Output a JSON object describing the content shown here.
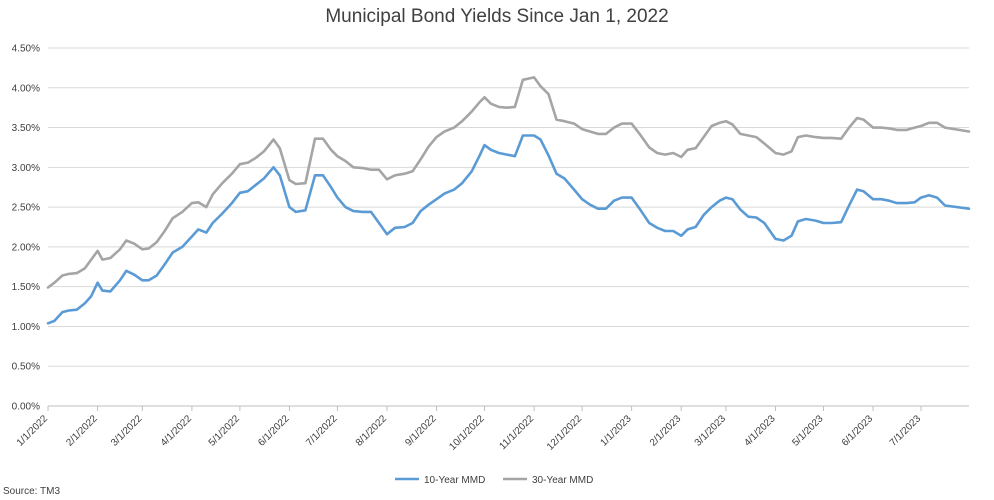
{
  "chart_data": {
    "type": "line",
    "title": "Municipal Bond Yields Since Jan 1, 2022",
    "source": "Source: TM3",
    "xlabel": "",
    "ylabel": "",
    "x_axis": {
      "start": "1/1/2022",
      "end": "7/31/2023",
      "tick_labels": [
        "1/1/2022",
        "2/1/2022",
        "3/1/2022",
        "4/1/2022",
        "5/1/2022",
        "6/1/2022",
        "7/1/2022",
        "8/1/2022",
        "9/1/2022",
        "10/1/2022",
        "11/1/2022",
        "12/1/2022",
        "1/1/2023",
        "2/1/2023",
        "3/1/2023",
        "4/1/2023",
        "5/1/2023",
        "6/1/2023",
        "7/1/2023"
      ]
    },
    "y_axis": {
      "ylim": [
        0,
        4.5
      ],
      "tick_values": [
        0,
        0.5,
        1.0,
        1.5,
        2.0,
        2.5,
        3.0,
        3.5,
        4.0,
        4.5
      ],
      "tick_labels": [
        "0.00%",
        "0.50%",
        "1.00%",
        "1.50%",
        "2.00%",
        "2.50%",
        "3.00%",
        "3.50%",
        "4.00%",
        "4.50%"
      ]
    },
    "grid": "horizontal",
    "legend": "bottom",
    "series": [
      {
        "name": "10-Year MMD",
        "color": "#5B9BD5",
        "points": [
          [
            "1/1/2022",
            1.04
          ],
          [
            "1/5/2022",
            1.07
          ],
          [
            "1/10/2022",
            1.18
          ],
          [
            "1/14/2022",
            1.2
          ],
          [
            "1/19/2022",
            1.21
          ],
          [
            "1/24/2022",
            1.29
          ],
          [
            "1/28/2022",
            1.38
          ],
          [
            "2/1/2022",
            1.55
          ],
          [
            "2/4/2022",
            1.45
          ],
          [
            "2/9/2022",
            1.44
          ],
          [
            "2/15/2022",
            1.58
          ],
          [
            "2/19/2022",
            1.7
          ],
          [
            "2/24/2022",
            1.65
          ],
          [
            "3/1/2022",
            1.58
          ],
          [
            "3/5/2022",
            1.58
          ],
          [
            "3/10/2022",
            1.64
          ],
          [
            "3/15/2022",
            1.78
          ],
          [
            "3/20/2022",
            1.93
          ],
          [
            "3/26/2022",
            2.0
          ],
          [
            "4/1/2022",
            2.13
          ],
          [
            "4/5/2022",
            2.22
          ],
          [
            "4/10/2022",
            2.18
          ],
          [
            "4/14/2022",
            2.3
          ],
          [
            "4/20/2022",
            2.42
          ],
          [
            "4/26/2022",
            2.55
          ],
          [
            "5/1/2022",
            2.68
          ],
          [
            "5/6/2022",
            2.7
          ],
          [
            "5/11/2022",
            2.78
          ],
          [
            "5/16/2022",
            2.86
          ],
          [
            "5/22/2022",
            3.0
          ],
          [
            "5/26/2022",
            2.9
          ],
          [
            "6/1/2022",
            2.5
          ],
          [
            "6/5/2022",
            2.44
          ],
          [
            "6/11/2022",
            2.46
          ],
          [
            "6/17/2022",
            2.9
          ],
          [
            "6/22/2022",
            2.9
          ],
          [
            "6/27/2022",
            2.75
          ],
          [
            "7/1/2022",
            2.62
          ],
          [
            "7/6/2022",
            2.5
          ],
          [
            "7/11/2022",
            2.45
          ],
          [
            "7/17/2022",
            2.44
          ],
          [
            "7/22/2022",
            2.44
          ],
          [
            "7/27/2022",
            2.3
          ],
          [
            "8/1/2022",
            2.16
          ],
          [
            "8/6/2022",
            2.24
          ],
          [
            "8/12/2022",
            2.25
          ],
          [
            "8/17/2022",
            2.3
          ],
          [
            "8/22/2022",
            2.45
          ],
          [
            "8/27/2022",
            2.53
          ],
          [
            "9/1/2022",
            2.6
          ],
          [
            "9/6/2022",
            2.67
          ],
          [
            "9/12/2022",
            2.72
          ],
          [
            "9/17/2022",
            2.8
          ],
          [
            "9/23/2022",
            2.95
          ],
          [
            "9/28/2022",
            3.15
          ],
          [
            "10/1/2022",
            3.28
          ],
          [
            "10/5/2022",
            3.22
          ],
          [
            "10/10/2022",
            3.18
          ],
          [
            "10/15/2022",
            3.16
          ],
          [
            "10/20/2022",
            3.14
          ],
          [
            "10/25/2022",
            3.4
          ],
          [
            "11/1/2022",
            3.4
          ],
          [
            "11/5/2022",
            3.35
          ],
          [
            "11/10/2022",
            3.15
          ],
          [
            "11/15/2022",
            2.92
          ],
          [
            "11/20/2022",
            2.86
          ],
          [
            "11/26/2022",
            2.72
          ],
          [
            "12/1/2022",
            2.6
          ],
          [
            "12/6/2022",
            2.53
          ],
          [
            "12/11/2022",
            2.48
          ],
          [
            "12/16/2022",
            2.48
          ],
          [
            "12/21/2022",
            2.58
          ],
          [
            "12/26/2022",
            2.62
          ],
          [
            "1/1/2023",
            2.62
          ],
          [
            "1/6/2023",
            2.48
          ],
          [
            "1/12/2023",
            2.3
          ],
          [
            "1/17/2023",
            2.24
          ],
          [
            "1/22/2023",
            2.2
          ],
          [
            "1/27/2023",
            2.2
          ],
          [
            "2/1/2023",
            2.14
          ],
          [
            "2/5/2023",
            2.22
          ],
          [
            "2/10/2023",
            2.25
          ],
          [
            "2/15/2023",
            2.4
          ],
          [
            "2/20/2023",
            2.5
          ],
          [
            "2/25/2023",
            2.58
          ],
          [
            "3/1/2023",
            2.62
          ],
          [
            "3/5/2023",
            2.6
          ],
          [
            "3/10/2023",
            2.47
          ],
          [
            "3/15/2023",
            2.38
          ],
          [
            "3/20/2023",
            2.37
          ],
          [
            "3/25/2023",
            2.3
          ],
          [
            "4/1/2023",
            2.1
          ],
          [
            "4/6/2023",
            2.08
          ],
          [
            "4/11/2023",
            2.14
          ],
          [
            "4/15/2023",
            2.32
          ],
          [
            "4/20/2023",
            2.35
          ],
          [
            "4/26/2023",
            2.33
          ],
          [
            "5/1/2023",
            2.3
          ],
          [
            "5/6/2023",
            2.3
          ],
          [
            "5/12/2023",
            2.31
          ],
          [
            "5/17/2023",
            2.52
          ],
          [
            "5/22/2023",
            2.72
          ],
          [
            "5/26/2023",
            2.7
          ],
          [
            "6/1/2023",
            2.6
          ],
          [
            "6/6/2023",
            2.6
          ],
          [
            "6/11/2023",
            2.58
          ],
          [
            "6/16/2023",
            2.55
          ],
          [
            "6/22/2023",
            2.55
          ],
          [
            "6/27/2023",
            2.56
          ],
          [
            "7/1/2023",
            2.62
          ],
          [
            "7/6/2023",
            2.65
          ],
          [
            "7/11/2023",
            2.62
          ],
          [
            "7/16/2023",
            2.52
          ],
          [
            "7/31/2023",
            2.48
          ]
        ]
      },
      {
        "name": "30-Year MMD",
        "color": "#A5A5A5",
        "points": [
          [
            "1/1/2022",
            1.49
          ],
          [
            "1/5/2022",
            1.55
          ],
          [
            "1/10/2022",
            1.64
          ],
          [
            "1/14/2022",
            1.66
          ],
          [
            "1/19/2022",
            1.67
          ],
          [
            "1/24/2022",
            1.73
          ],
          [
            "1/28/2022",
            1.84
          ],
          [
            "2/1/2022",
            1.95
          ],
          [
            "2/4/2022",
            1.84
          ],
          [
            "2/9/2022",
            1.86
          ],
          [
            "2/15/2022",
            1.97
          ],
          [
            "2/19/2022",
            2.08
          ],
          [
            "2/24/2022",
            2.04
          ],
          [
            "3/1/2022",
            1.97
          ],
          [
            "3/5/2022",
            1.98
          ],
          [
            "3/10/2022",
            2.06
          ],
          [
            "3/15/2022",
            2.2
          ],
          [
            "3/20/2022",
            2.36
          ],
          [
            "3/26/2022",
            2.44
          ],
          [
            "4/1/2022",
            2.55
          ],
          [
            "4/5/2022",
            2.56
          ],
          [
            "4/10/2022",
            2.5
          ],
          [
            "4/14/2022",
            2.66
          ],
          [
            "4/20/2022",
            2.8
          ],
          [
            "4/26/2022",
            2.92
          ],
          [
            "5/1/2022",
            3.04
          ],
          [
            "5/6/2022",
            3.06
          ],
          [
            "5/11/2022",
            3.12
          ],
          [
            "5/16/2022",
            3.2
          ],
          [
            "5/22/2022",
            3.35
          ],
          [
            "5/26/2022",
            3.24
          ],
          [
            "6/1/2022",
            2.84
          ],
          [
            "6/5/2022",
            2.79
          ],
          [
            "6/11/2022",
            2.8
          ],
          [
            "6/17/2022",
            3.36
          ],
          [
            "6/22/2022",
            3.36
          ],
          [
            "6/27/2022",
            3.22
          ],
          [
            "7/1/2022",
            3.14
          ],
          [
            "7/6/2022",
            3.08
          ],
          [
            "7/11/2022",
            3.0
          ],
          [
            "7/17/2022",
            2.99
          ],
          [
            "7/22/2022",
            2.97
          ],
          [
            "7/27/2022",
            2.97
          ],
          [
            "8/1/2022",
            2.85
          ],
          [
            "8/6/2022",
            2.9
          ],
          [
            "8/12/2022",
            2.92
          ],
          [
            "8/17/2022",
            2.95
          ],
          [
            "8/22/2022",
            3.1
          ],
          [
            "8/27/2022",
            3.26
          ],
          [
            "9/1/2022",
            3.38
          ],
          [
            "9/6/2022",
            3.45
          ],
          [
            "9/12/2022",
            3.5
          ],
          [
            "9/17/2022",
            3.58
          ],
          [
            "9/23/2022",
            3.7
          ],
          [
            "9/28/2022",
            3.82
          ],
          [
            "10/1/2022",
            3.88
          ],
          [
            "10/5/2022",
            3.8
          ],
          [
            "10/10/2022",
            3.76
          ],
          [
            "10/15/2022",
            3.75
          ],
          [
            "10/20/2022",
            3.76
          ],
          [
            "10/25/2022",
            4.1
          ],
          [
            "11/1/2022",
            4.13
          ],
          [
            "11/5/2022",
            4.02
          ],
          [
            "11/10/2022",
            3.92
          ],
          [
            "11/15/2022",
            3.6
          ],
          [
            "11/20/2022",
            3.58
          ],
          [
            "11/26/2022",
            3.55
          ],
          [
            "12/1/2022",
            3.48
          ],
          [
            "12/6/2022",
            3.45
          ],
          [
            "12/11/2022",
            3.42
          ],
          [
            "12/16/2022",
            3.42
          ],
          [
            "12/21/2022",
            3.5
          ],
          [
            "12/26/2022",
            3.55
          ],
          [
            "1/1/2023",
            3.55
          ],
          [
            "1/6/2023",
            3.42
          ],
          [
            "1/12/2023",
            3.25
          ],
          [
            "1/17/2023",
            3.18
          ],
          [
            "1/22/2023",
            3.16
          ],
          [
            "1/27/2023",
            3.18
          ],
          [
            "2/1/2023",
            3.13
          ],
          [
            "2/5/2023",
            3.22
          ],
          [
            "2/10/2023",
            3.24
          ],
          [
            "2/15/2023",
            3.38
          ],
          [
            "2/20/2023",
            3.52
          ],
          [
            "2/25/2023",
            3.56
          ],
          [
            "3/1/2023",
            3.58
          ],
          [
            "3/5/2023",
            3.54
          ],
          [
            "3/10/2023",
            3.42
          ],
          [
            "3/15/2023",
            3.4
          ],
          [
            "3/20/2023",
            3.38
          ],
          [
            "3/25/2023",
            3.3
          ],
          [
            "4/1/2023",
            3.18
          ],
          [
            "4/6/2023",
            3.16
          ],
          [
            "4/11/2023",
            3.2
          ],
          [
            "4/15/2023",
            3.38
          ],
          [
            "4/20/2023",
            3.4
          ],
          [
            "4/26/2023",
            3.38
          ],
          [
            "5/1/2023",
            3.37
          ],
          [
            "5/6/2023",
            3.37
          ],
          [
            "5/12/2023",
            3.36
          ],
          [
            "5/17/2023",
            3.5
          ],
          [
            "5/22/2023",
            3.62
          ],
          [
            "5/26/2023",
            3.6
          ],
          [
            "6/1/2023",
            3.5
          ],
          [
            "6/6/2023",
            3.5
          ],
          [
            "6/11/2023",
            3.49
          ],
          [
            "6/16/2023",
            3.47
          ],
          [
            "6/22/2023",
            3.47
          ],
          [
            "6/27/2023",
            3.5
          ],
          [
            "7/1/2023",
            3.52
          ],
          [
            "7/6/2023",
            3.56
          ],
          [
            "7/11/2023",
            3.56
          ],
          [
            "7/16/2023",
            3.5
          ],
          [
            "7/31/2023",
            3.45
          ]
        ]
      }
    ]
  }
}
